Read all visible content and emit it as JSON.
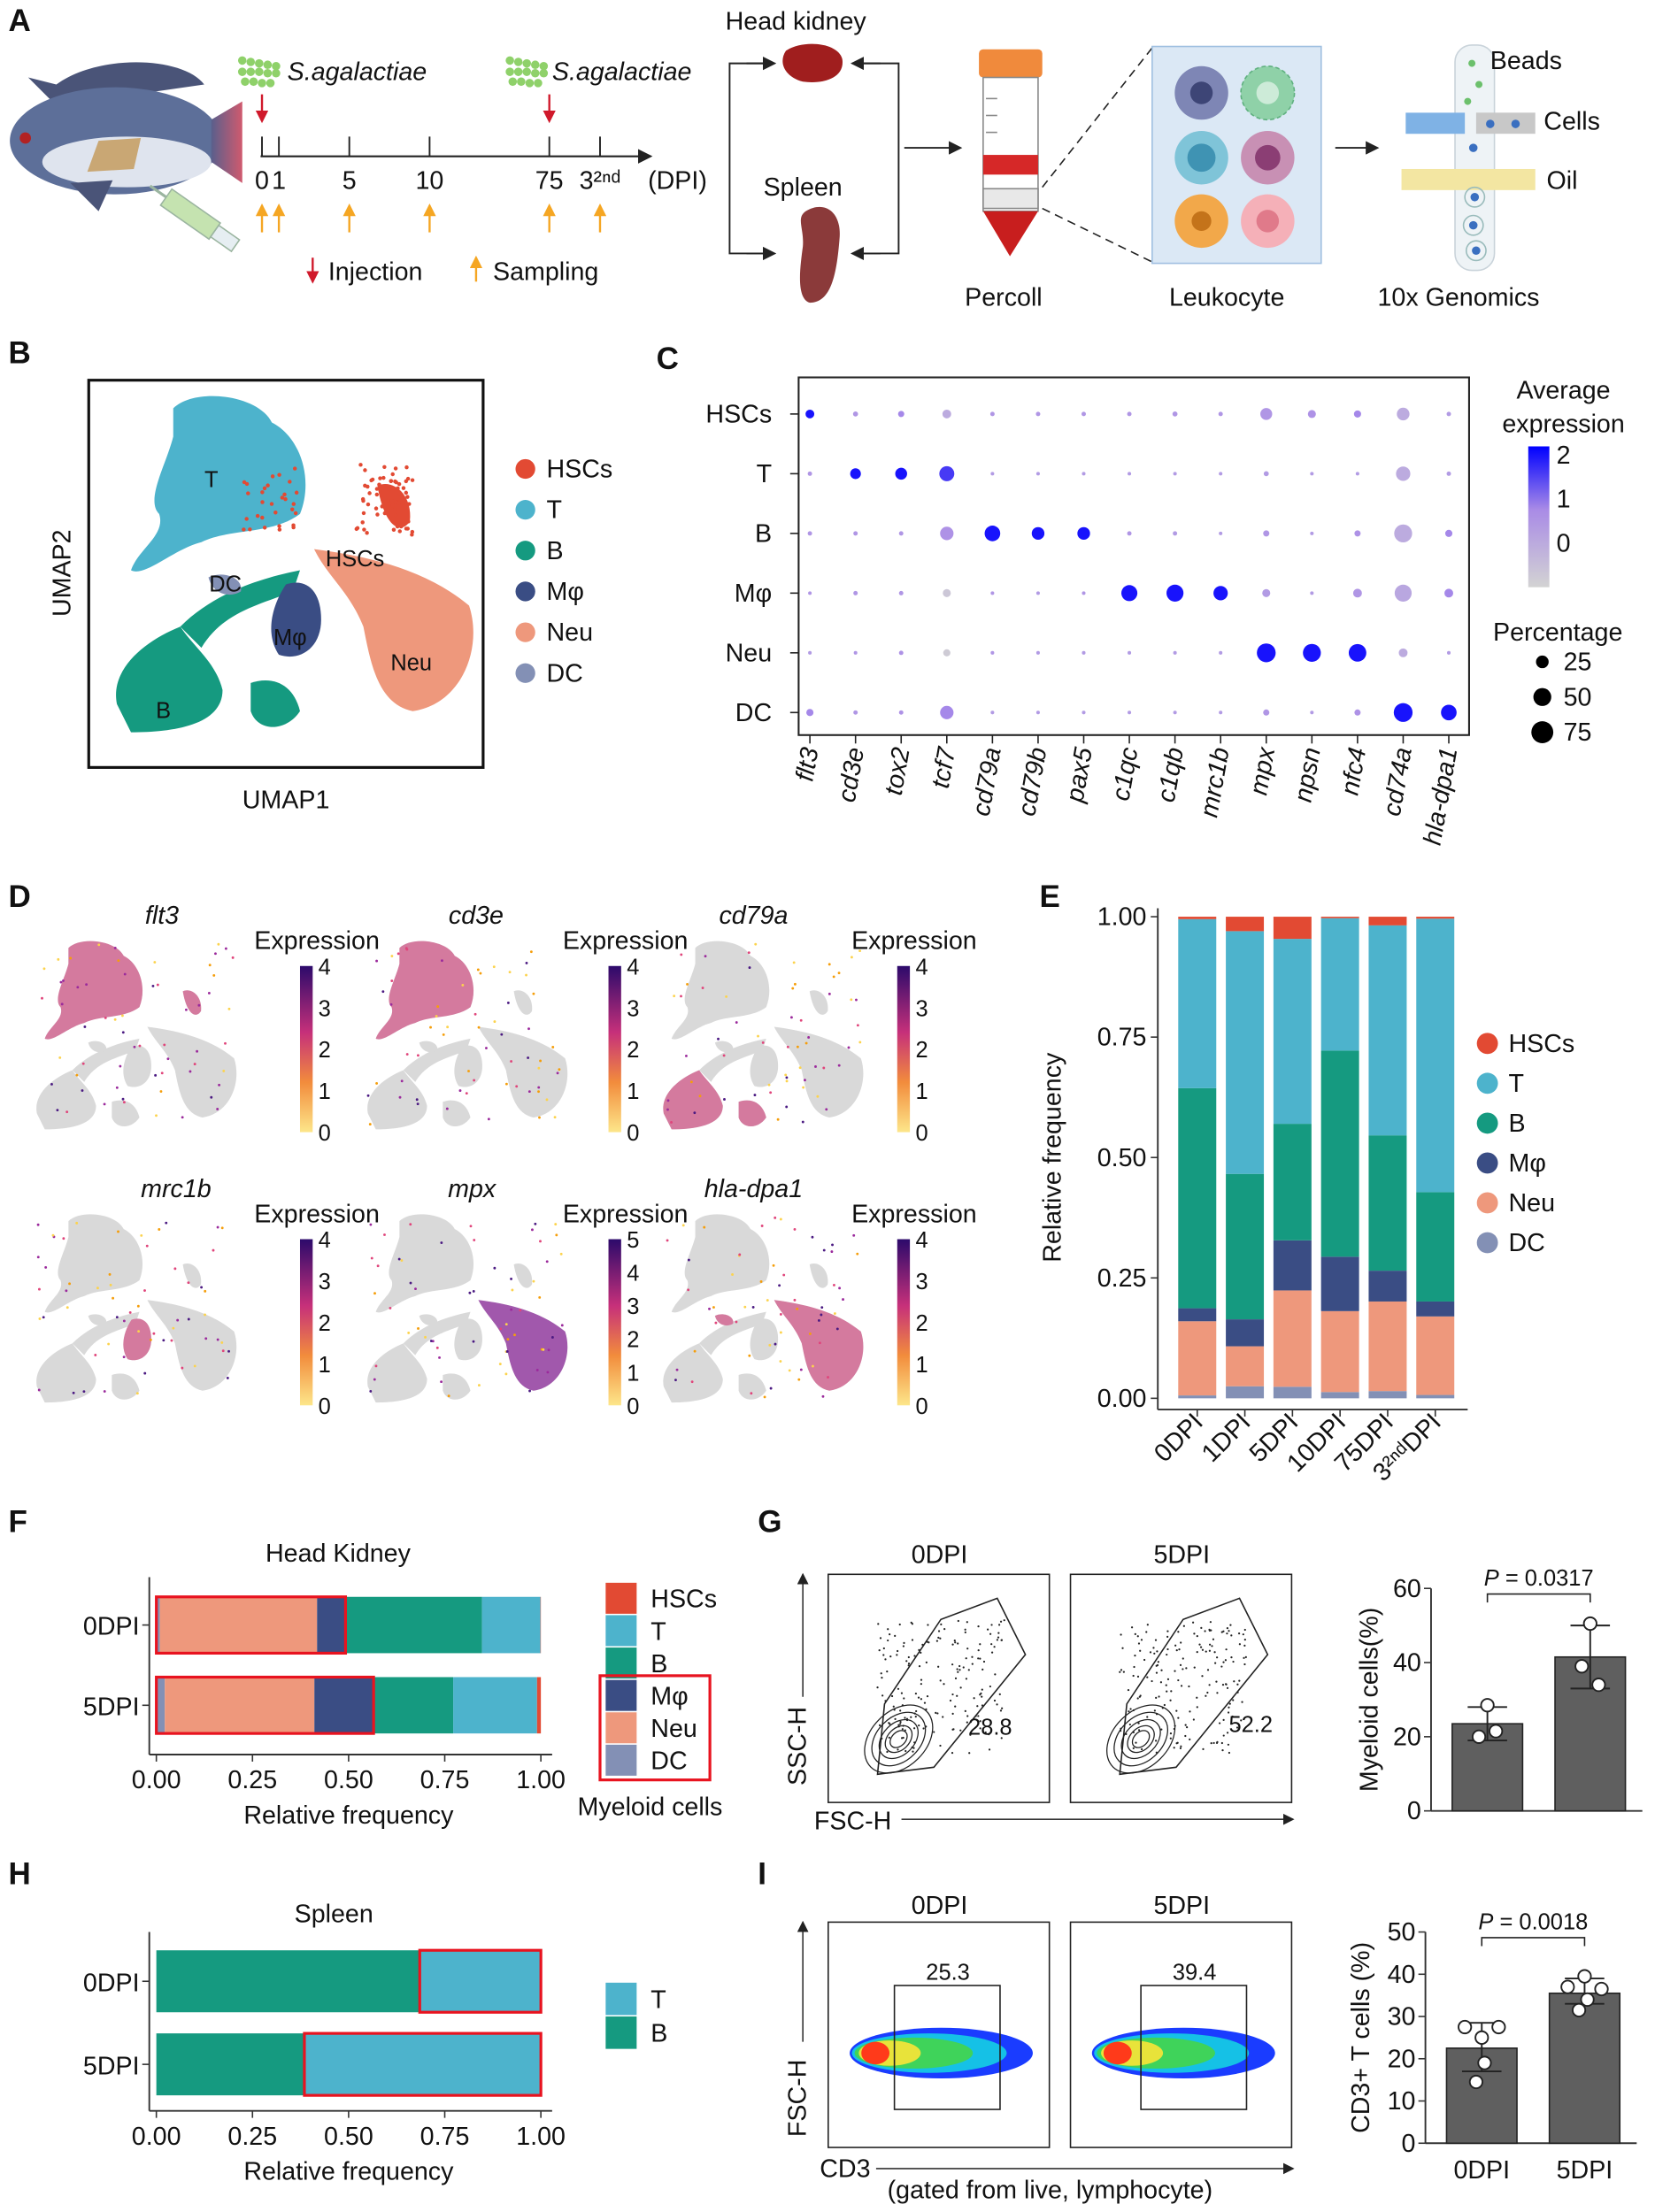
{
  "panel_labels": [
    "A",
    "B",
    "C",
    "D",
    "E",
    "F",
    "G",
    "H",
    "I"
  ],
  "panel_a": {
    "pathogen_label": "S.agalactiae",
    "timeline_ticks": [
      "0",
      "1",
      "5",
      "10",
      "75",
      "3²ⁿᵈ"
    ],
    "timeline_unit": "(DPI)",
    "legend_injection": "Injection",
    "legend_sampling": "Sampling",
    "head_kidney": "Head kidney",
    "spleen": "Spleen",
    "percoll": "Percoll",
    "leukocyte": "Leukocyte",
    "genomics": "10x Genomics",
    "beads": "Beads",
    "cells": "Cells",
    "oil": "Oil",
    "colors": {
      "injection_arrow": "#d0192b",
      "sampling_arrow": "#f5a623"
    }
  },
  "cell_types": [
    {
      "name": "HSCs",
      "color": "#e24a33"
    },
    {
      "name": "T",
      "color": "#4db3cc"
    },
    {
      "name": "B",
      "color": "#159a80"
    },
    {
      "name": "Mφ",
      "color": "#3a4d84"
    },
    {
      "name": "Neu",
      "color": "#ee987c"
    },
    {
      "name": "DC",
      "color": "#8390b5"
    }
  ],
  "panel_b": {
    "xlabel": "UMAP1",
    "ylabel": "UMAP2",
    "cluster_labels": [
      "T",
      "DC",
      "HSCs",
      "Mφ",
      "Neu",
      "B"
    ]
  },
  "panel_d": {
    "plots": [
      {
        "gene": "flt3",
        "legend_title": "Expression",
        "ticks": [
          "4",
          "3",
          "2",
          "1",
          "0"
        ]
      },
      {
        "gene": "cd3e",
        "legend_title": "Expression",
        "ticks": [
          "4",
          "3",
          "2",
          "1",
          "0"
        ]
      },
      {
        "gene": "cd79a",
        "legend_title": "Expression",
        "ticks": [
          "4",
          "3",
          "2",
          "1",
          "0"
        ]
      },
      {
        "gene": "mrc1b",
        "legend_title": "Expression",
        "ticks": [
          "4",
          "3",
          "2",
          "1",
          "0"
        ]
      },
      {
        "gene": "mpx",
        "legend_title": "Expression",
        "ticks": [
          "5",
          "4",
          "3",
          "2",
          "1",
          "0"
        ]
      },
      {
        "gene": "hla-dpa1",
        "legend_title": "Expression",
        "ticks": [
          "4",
          "3",
          "2",
          "1",
          "0"
        ]
      }
    ]
  },
  "panel_f": {
    "legend_group_label": "Myeloid cells"
  },
  "panel_g": {
    "flow_titles": [
      "0DPI",
      "5DPI"
    ],
    "gate_values": [
      "28.8",
      "52.2"
    ],
    "xlabel": "FSC-H",
    "ylabel": "SSC-H"
  },
  "panel_i": {
    "flow_titles": [
      "0DPI",
      "5DPI"
    ],
    "gate_values": [
      "25.3",
      "39.4"
    ],
    "xlabel": "CD3",
    "xlabel_note": "(gated from live, lymphocyte)",
    "ylabel": "FSC-H"
  },
  "chart_data": [
    {
      "id": "C",
      "type": "dotplot",
      "genes": [
        "flt3",
        "cd3e",
        "tox2",
        "tcf7",
        "cd79a",
        "cd79b",
        "pax5",
        "c1qc",
        "c1qb",
        "mrc1b",
        "mpx",
        "npsn",
        "nfc4",
        "cd74a",
        "hla-dpa1"
      ],
      "cell_types": [
        "HSCs",
        "T",
        "B",
        "Mφ",
        "Neu",
        "DC"
      ],
      "avg_expression": [
        [
          2,
          0.5,
          0.8,
          0,
          0.5,
          0.5,
          0.5,
          0.5,
          0.5,
          0.5,
          0.5,
          0.6,
          0.8,
          0,
          0.4
        ],
        [
          0.5,
          2,
          2,
          1.6,
          0.4,
          0.4,
          0.4,
          0.4,
          0.4,
          0.4,
          0.4,
          0.4,
          0.4,
          0,
          0.4
        ],
        [
          0.5,
          0.5,
          0.5,
          0.6,
          2,
          2,
          2,
          0.5,
          0.4,
          0.4,
          0.5,
          0.4,
          0.6,
          0,
          0.8
        ],
        [
          0.5,
          0.5,
          0.5,
          -0.7,
          0.5,
          0.4,
          0.5,
          2,
          2,
          2,
          0.4,
          0.4,
          0.5,
          0.1,
          0.8
        ],
        [
          0.4,
          0.5,
          0.6,
          -0.8,
          0.5,
          0.4,
          0.4,
          0.4,
          0.4,
          0.4,
          2,
          2,
          2,
          0,
          0.4
        ],
        [
          0.8,
          0.5,
          0.6,
          0.8,
          0.4,
          0.4,
          0.4,
          0.4,
          0.4,
          0.4,
          0.5,
          0.4,
          0.6,
          2,
          2
        ]
      ],
      "percentage": [
        [
          12,
          4,
          6,
          12,
          3,
          3,
          3,
          3,
          4,
          3,
          22,
          10,
          8,
          25,
          3
        ],
        [
          3,
          18,
          22,
          35,
          2,
          2,
          2,
          2,
          2,
          2,
          4,
          2,
          2,
          32,
          3
        ],
        [
          3,
          3,
          3,
          28,
          38,
          25,
          25,
          3,
          3,
          2,
          6,
          2,
          6,
          50,
          8
        ],
        [
          2,
          3,
          3,
          10,
          2,
          2,
          2,
          40,
          45,
          32,
          10,
          2,
          12,
          45,
          12
        ],
        [
          2,
          2,
          3,
          8,
          2,
          2,
          2,
          2,
          2,
          2,
          55,
          50,
          48,
          12,
          2
        ],
        [
          8,
          3,
          3,
          28,
          2,
          2,
          2,
          2,
          2,
          2,
          6,
          2,
          6,
          55,
          38
        ]
      ],
      "color_legend_title": [
        "Average",
        "expression"
      ],
      "color_ticks": [
        2,
        1,
        0
      ],
      "color_range": [
        -1,
        2.2
      ],
      "colors": {
        "low": "#d3d3d3",
        "high": "#0000ff"
      },
      "size_legend_title": "Percentage",
      "size_ticks": [
        25,
        50,
        75
      ]
    },
    {
      "id": "E",
      "type": "bar",
      "stacked": true,
      "orientation": "vertical",
      "categories": [
        "0DPI",
        "1DPI",
        "5DPI",
        "10DPI",
        "75DPI",
        "3²ⁿᵈDPI"
      ],
      "series": [
        {
          "name": "DC",
          "values": [
            0.006,
            0.025,
            0.024,
            0.013,
            0.015,
            0.007
          ]
        },
        {
          "name": "Neu",
          "values": [
            0.154,
            0.083,
            0.2,
            0.168,
            0.186,
            0.163
          ]
        },
        {
          "name": "Mφ",
          "values": [
            0.027,
            0.056,
            0.104,
            0.113,
            0.064,
            0.031
          ]
        },
        {
          "name": "B",
          "values": [
            0.457,
            0.302,
            0.242,
            0.428,
            0.281,
            0.227
          ]
        },
        {
          "name": "T",
          "values": [
            0.351,
            0.504,
            0.384,
            0.275,
            0.436,
            0.568
          ]
        },
        {
          "name": "HSCs",
          "values": [
            0.005,
            0.03,
            0.046,
            0.003,
            0.018,
            0.004
          ]
        }
      ],
      "ylabel": "Relative frequency",
      "ylim": [
        0,
        1
      ],
      "yticks": [
        "0.00",
        "0.25",
        "0.50",
        "0.75",
        "1.00"
      ],
      "legend_order": [
        "HSCs",
        "T",
        "B",
        "Mφ",
        "Neu",
        "DC"
      ],
      "legend": "right"
    },
    {
      "id": "F",
      "type": "bar",
      "stacked": true,
      "orientation": "horizontal",
      "title": "Head Kidney",
      "categories": [
        "0DPI",
        "5DPI"
      ],
      "series": [
        {
          "name": "DC",
          "values": [
            0.009,
            0.022
          ]
        },
        {
          "name": "Neu",
          "values": [
            0.409,
            0.389
          ]
        },
        {
          "name": "Mφ",
          "values": [
            0.074,
            0.154
          ]
        },
        {
          "name": "B",
          "values": [
            0.355,
            0.207
          ]
        },
        {
          "name": "T",
          "values": [
            0.152,
            0.218
          ]
        },
        {
          "name": "HSCs",
          "values": [
            0.001,
            0.01
          ]
        }
      ],
      "highlight_series": [
        "DC",
        "Neu",
        "Mφ"
      ],
      "xlabel": "Relative frequency",
      "xlim": [
        0,
        1
      ],
      "xticks": [
        "0.00",
        "0.25",
        "0.50",
        "0.75",
        "1.00"
      ],
      "legend_order": [
        "HSCs",
        "T",
        "B",
        "Mφ",
        "Neu",
        "DC"
      ],
      "legend": "right"
    },
    {
      "id": "H",
      "type": "bar",
      "stacked": true,
      "orientation": "horizontal",
      "title": "Spleen",
      "categories": [
        "0DPI",
        "5DPI"
      ],
      "series": [
        {
          "name": "B",
          "values": [
            0.685,
            0.385
          ]
        },
        {
          "name": "T",
          "values": [
            0.315,
            0.615
          ]
        }
      ],
      "highlight_series": [
        "T"
      ],
      "xlabel": "Relative frequency",
      "xlim": [
        0,
        1
      ],
      "xticks": [
        "0.00",
        "0.25",
        "0.50",
        "0.75",
        "1.00"
      ],
      "legend_order": [
        "T",
        "B"
      ],
      "legend": "right"
    },
    {
      "id": "G-bar",
      "type": "bar",
      "categories": [
        "0DPI",
        "5DPI"
      ],
      "values": [
        23.5,
        41.5
      ],
      "error": [
        [
          19,
          28
        ],
        [
          33,
          50
        ]
      ],
      "points": [
        [
          28.5,
          20,
          21.5
        ],
        [
          50.5,
          39,
          34
        ]
      ],
      "ylabel": "Myeloid cells(%)",
      "ylim": [
        0,
        60
      ],
      "yticks": [
        0,
        20,
        40,
        60
      ],
      "p_label": "P",
      "p_value": "= 0.0317",
      "bar_color": "#5f5f5f"
    },
    {
      "id": "I-bar",
      "type": "bar",
      "categories": [
        "0DPI",
        "5DPI"
      ],
      "values": [
        22.5,
        35.5
      ],
      "error": [
        [
          17,
          28.5
        ],
        [
          33,
          39
        ]
      ],
      "points": [
        [
          27.5,
          27.5,
          25,
          19,
          14.5
        ],
        [
          37,
          36.5,
          39.5,
          34,
          31.5
        ]
      ],
      "ylabel": "CD3+ T cells (%)",
      "ylim": [
        0,
        50
      ],
      "yticks": [
        0,
        10,
        20,
        30,
        40,
        50
      ],
      "p_label": "P",
      "p_value": "= 0.0018",
      "bar_color": "#5f5f5f"
    }
  ]
}
